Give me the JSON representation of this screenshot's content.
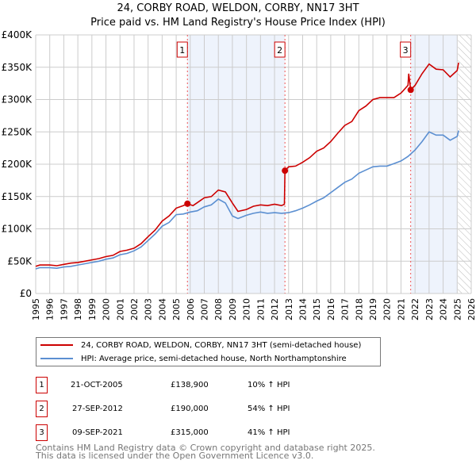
{
  "title": "24, CORBY ROAD, WELDON, CORBY, NN17 3HT",
  "subtitle": "Price paid vs. HM Land Registry's House Price Index (HPI)",
  "chart_data": {
    "type": "line",
    "title": "24, CORBY ROAD, WELDON, CORBY, NN17 3HT — Price paid vs. HM Land Registry's House Price Index (HPI)",
    "xlim": [
      1995,
      2026
    ],
    "ylim": [
      0,
      400000
    ],
    "x_ticks": [
      1995,
      1996,
      1997,
      1998,
      1999,
      2000,
      2001,
      2002,
      2003,
      2004,
      2005,
      2006,
      2007,
      2008,
      2009,
      2010,
      2011,
      2012,
      2013,
      2014,
      2015,
      2016,
      2017,
      2018,
      2019,
      2020,
      2021,
      2022,
      2023,
      2024,
      2025,
      2026
    ],
    "y_ticks": [
      {
        "v": 0,
        "label": "£0"
      },
      {
        "v": 50000,
        "label": "£50K"
      },
      {
        "v": 100000,
        "label": "£100K"
      },
      {
        "v": 150000,
        "label": "£150K"
      },
      {
        "v": 200000,
        "label": "£200K"
      },
      {
        "v": 250000,
        "label": "£250K"
      },
      {
        "v": 300000,
        "label": "£300K"
      },
      {
        "v": 350000,
        "label": "£350K"
      },
      {
        "v": 400000,
        "label": "£400K"
      }
    ],
    "grid": true,
    "shaded_periods": [
      [
        2005.8,
        2012.74
      ],
      [
        2021.69,
        2025.0
      ]
    ],
    "forecast_hatch_from": 2025.05,
    "series": [
      {
        "name": "24, CORBY ROAD, WELDON, CORBY, NN17 3HT (semi-detached house)",
        "color": "#cc0000",
        "x": [
          1995,
          1995.3,
          1996,
          1996.5,
          1997,
          1997.5,
          1998,
          1998.5,
          1999,
          1999.5,
          2000,
          2000.5,
          2001,
          2001.5,
          2002,
          2002.5,
          2003,
          2003.5,
          2004,
          2004.5,
          2005,
          2005.5,
          2005.8,
          2006.2,
          2006.6,
          2007,
          2007.5,
          2008,
          2008.5,
          2009,
          2009.4,
          2010,
          2010.5,
          2011,
          2011.5,
          2012,
          2012.5,
          2012.7,
          2012.74,
          2013,
          2013.5,
          2014,
          2014.5,
          2015,
          2015.5,
          2016,
          2016.5,
          2017,
          2017.5,
          2018,
          2018.5,
          2019,
          2019.5,
          2020,
          2020.5,
          2021,
          2021.5,
          2021.55,
          2021.69,
          2022,
          2022.5,
          2023,
          2023.5,
          2024,
          2024.5,
          2025,
          2025.1
        ],
        "y": [
          42000,
          44000,
          44000,
          43000,
          45000,
          47000,
          48000,
          50000,
          52000,
          54000,
          57000,
          59000,
          65000,
          67000,
          70000,
          77000,
          88000,
          98000,
          112000,
          120000,
          132000,
          136000,
          138900,
          136000,
          142000,
          148000,
          150000,
          160000,
          157000,
          140000,
          127000,
          130000,
          135000,
          137000,
          136000,
          138000,
          136000,
          138000,
          190000,
          196000,
          197000,
          203000,
          210000,
          220000,
          225000,
          235000,
          248000,
          260000,
          266000,
          283000,
          290000,
          300000,
          303000,
          303000,
          303000,
          310000,
          322000,
          340000,
          315000,
          322000,
          340000,
          355000,
          347000,
          346000,
          335000,
          345000,
          357000
        ]
      },
      {
        "name": "HPI: Average price, semi-detached house, North Northamptonshire",
        "color": "#5b8fd1",
        "x": [
          1995,
          1995.3,
          1996,
          1996.5,
          1997,
          1997.5,
          1998,
          1998.5,
          1999,
          1999.5,
          2000,
          2000.5,
          2001,
          2001.5,
          2002,
          2002.5,
          2003,
          2003.5,
          2004,
          2004.5,
          2005,
          2005.5,
          2006,
          2006.5,
          2007,
          2007.5,
          2008,
          2008.5,
          2009,
          2009.4,
          2010,
          2010.5,
          2011,
          2011.5,
          2012,
          2012.5,
          2013,
          2013.5,
          2014,
          2014.5,
          2015,
          2015.5,
          2016,
          2016.5,
          2017,
          2017.5,
          2018,
          2018.5,
          2019,
          2019.5,
          2020,
          2020.5,
          2021,
          2021.5,
          2022,
          2022.5,
          2023,
          2023.5,
          2024,
          2024.5,
          2025,
          2025.1
        ],
        "y": [
          38000,
          40000,
          40000,
          39000,
          41000,
          42000,
          44000,
          46000,
          48000,
          50000,
          53000,
          55000,
          60000,
          62000,
          66000,
          72000,
          82000,
          92000,
          104000,
          110000,
          122000,
          123000,
          126000,
          128000,
          134000,
          137000,
          146000,
          140000,
          120000,
          116000,
          121000,
          124000,
          126000,
          124000,
          125000,
          124000,
          125000,
          128000,
          132000,
          137000,
          143000,
          148000,
          156000,
          164000,
          172000,
          177000,
          186000,
          191000,
          196000,
          197000,
          197000,
          201000,
          205000,
          212000,
          222000,
          235000,
          250000,
          245000,
          245000,
          237000,
          243000,
          252000
        ]
      }
    ],
    "sales": [
      {
        "n": "1",
        "x": 2005.8,
        "y": 138900
      },
      {
        "n": "2",
        "x": 2012.74,
        "y": 190000
      },
      {
        "n": "3",
        "x": 2021.69,
        "y": 315000
      }
    ]
  },
  "legend": {
    "property": "24, CORBY ROAD, WELDON, CORBY, NN17 3HT (semi-detached house)",
    "hpi": "HPI: Average price, semi-detached house, North Northamptonshire"
  },
  "sales_table": [
    {
      "n": "1",
      "date": "21-OCT-2005",
      "price": "£138,900",
      "hpi": "10% ↑ HPI"
    },
    {
      "n": "2",
      "date": "27-SEP-2012",
      "price": "£190,000",
      "hpi": "54% ↑ HPI"
    },
    {
      "n": "3",
      "date": "09-SEP-2021",
      "price": "£315,000",
      "hpi": "41% ↑ HPI"
    }
  ],
  "footer": {
    "line1": "Contains HM Land Registry data © Crown copyright and database right 2025.",
    "line2": "This data is licensed under the Open Government Licence v3.0."
  }
}
